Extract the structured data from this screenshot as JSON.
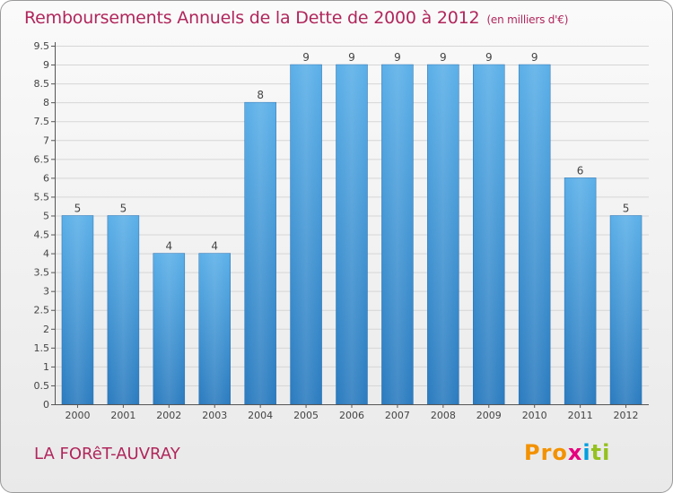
{
  "title": "Remboursements Annuels de la Dette de 2000 à 2012",
  "unit": "(en milliers d'€)",
  "town": "LA FORêT-AUVRAY",
  "logo": {
    "p1": "Pro",
    "p2": "x",
    "p3": "i",
    "p4": "ti"
  },
  "colors": {
    "bar": "#4a9fe0",
    "title": "#b0265b"
  },
  "chart_data": {
    "type": "bar",
    "categories": [
      "2000",
      "2001",
      "2002",
      "2003",
      "2004",
      "2005",
      "2006",
      "2007",
      "2008",
      "2009",
      "2010",
      "2011",
      "2012"
    ],
    "values": [
      5,
      5,
      4,
      4,
      8,
      9,
      9,
      9,
      9,
      9,
      9,
      6,
      5
    ],
    "ylim": [
      0,
      9.5
    ],
    "yticks": [
      "0",
      "0.5",
      "1",
      "1.5",
      "2",
      "2.5",
      "3",
      "3.5",
      "4",
      "4.5",
      "5",
      "5.5",
      "6",
      "6.5",
      "7",
      "7.5",
      "8",
      "8.5",
      "9",
      "9.5"
    ],
    "grid": "horizontal"
  }
}
